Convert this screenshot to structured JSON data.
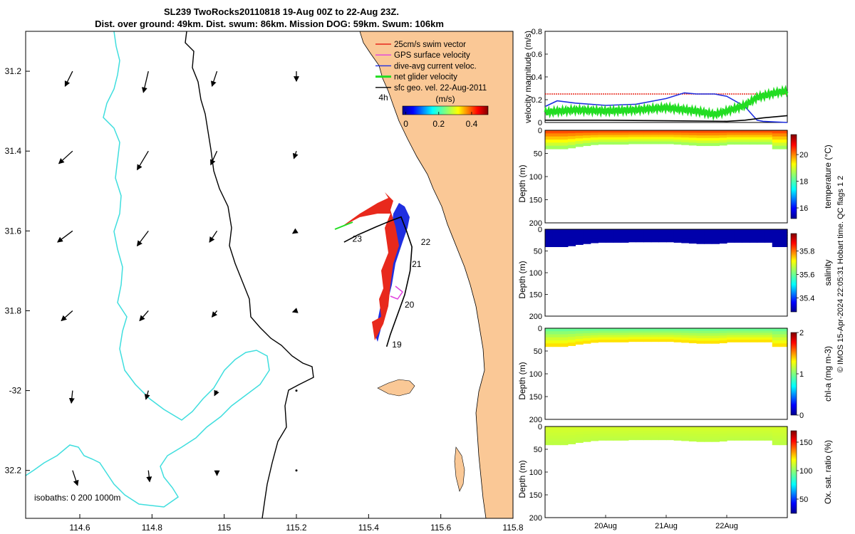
{
  "title": {
    "line1": "SL239 TwoRocks20110818 19-Aug 00Z to 22-Aug 23Z.",
    "line2": "Dist. over ground: 49km. Dist. swum: 86km. Mission DOG: 59km. Swum: 106km"
  },
  "credit": "© IMOS 15-Apr-2024 22:05:31 Hobart time. QC flags 1  2",
  "chart_data": [
    {
      "type": "map",
      "xlim": [
        114.45,
        115.8
      ],
      "ylim": [
        31.1,
        32.32
      ],
      "y_reversed": true,
      "xticks": [
        114.6,
        114.8,
        115,
        115.2,
        115.4,
        115.6,
        115.8
      ],
      "xtick_labels": [
        "114.6",
        "114.8",
        "115",
        "115.2",
        "115.4",
        "115.6",
        "115.8"
      ],
      "yticks": [
        31.2,
        31.4,
        31.6,
        31.8,
        32.0,
        32.2
      ],
      "ytick_labels": [
        "31.2",
        "31.4",
        "31.6",
        "31.8",
        "-32",
        "32.2"
      ],
      "legend": {
        "position": "top-right",
        "entries": [
          {
            "label": "25cm/s swim vector",
            "color": "#e8291c"
          },
          {
            "label": "GPS surface velocity",
            "color": "#e040e0"
          },
          {
            "label": "dive-avg current veloc.",
            "color": "#1f2fe0"
          },
          {
            "label": "net glider velocity",
            "color": "#22dd22"
          },
          {
            "label": "sfc geo. vel. 22-Aug-2011",
            "color": "#000000"
          }
        ]
      },
      "colorbar": {
        "label": "(m/s)",
        "ticks": [
          0,
          0.2,
          0.4
        ],
        "tick_labels": [
          "0",
          "0.2",
          "0.4"
        ],
        "range": [
          -0.02,
          0.5
        ]
      },
      "annotation_4h": "4h",
      "isobath_label": "isobaths: 0   200  1000m",
      "track": [
        {
          "lon": 115.332,
          "lat": 31.628
        },
        {
          "lon": 115.37,
          "lat": 31.61
        },
        {
          "lon": 115.42,
          "lat": 31.59
        },
        {
          "lon": 115.46,
          "lat": 31.575
        },
        {
          "lon": 115.49,
          "lat": 31.565
        },
        {
          "lon": 115.505,
          "lat": 31.6
        },
        {
          "lon": 115.52,
          "lat": 31.64
        },
        {
          "lon": 115.515,
          "lat": 31.7
        },
        {
          "lon": 115.5,
          "lat": 31.76
        },
        {
          "lon": 115.48,
          "lat": 31.81
        },
        {
          "lon": 115.46,
          "lat": 31.86
        },
        {
          "lon": 115.45,
          "lat": 31.89
        }
      ],
      "day_labels": [
        {
          "text": "19",
          "lon": 115.465,
          "lat": 31.885
        },
        {
          "text": "20",
          "lon": 115.5,
          "lat": 31.785
        },
        {
          "text": "21",
          "lon": 115.52,
          "lat": 31.683
        },
        {
          "text": "22",
          "lon": 115.545,
          "lat": 31.628
        },
        {
          "text": "23",
          "lon": 115.355,
          "lat": 31.62
        }
      ],
      "geo_vectors": [
        {
          "lon": 114.58,
          "lat": 31.2,
          "u": -0.03,
          "v": 0.06
        },
        {
          "lon": 114.79,
          "lat": 31.2,
          "u": -0.02,
          "v": 0.085
        },
        {
          "lon": 114.98,
          "lat": 31.2,
          "u": -0.02,
          "v": 0.06
        },
        {
          "lon": 115.2,
          "lat": 31.2,
          "u": 0.0,
          "v": 0.04
        },
        {
          "lon": 114.58,
          "lat": 31.4,
          "u": -0.055,
          "v": 0.05
        },
        {
          "lon": 114.79,
          "lat": 31.4,
          "u": -0.045,
          "v": 0.075
        },
        {
          "lon": 114.98,
          "lat": 31.4,
          "u": -0.025,
          "v": 0.055
        },
        {
          "lon": 115.2,
          "lat": 31.4,
          "u": -0.01,
          "v": 0.03
        },
        {
          "lon": 114.58,
          "lat": 31.6,
          "u": -0.06,
          "v": 0.045
        },
        {
          "lon": 114.79,
          "lat": 31.6,
          "u": -0.045,
          "v": 0.06
        },
        {
          "lon": 114.98,
          "lat": 31.6,
          "u": -0.03,
          "v": 0.045
        },
        {
          "lon": 115.2,
          "lat": 31.6,
          "u": -0.015,
          "v": 0.01
        },
        {
          "lon": 114.58,
          "lat": 31.8,
          "u": -0.045,
          "v": 0.04
        },
        {
          "lon": 114.79,
          "lat": 31.8,
          "u": -0.035,
          "v": 0.04
        },
        {
          "lon": 114.98,
          "lat": 31.8,
          "u": -0.02,
          "v": 0.025
        },
        {
          "lon": 115.2,
          "lat": 31.8,
          "u": -0.015,
          "v": 0.005
        },
        {
          "lon": 114.58,
          "lat": 32.0,
          "u": -0.005,
          "v": 0.05
        },
        {
          "lon": 114.79,
          "lat": 32.0,
          "u": -0.01,
          "v": 0.035
        },
        {
          "lon": 114.98,
          "lat": 32.0,
          "u": -0.01,
          "v": 0.02
        },
        {
          "lon": 115.2,
          "lat": 32.0,
          "u": 0.0,
          "v": 0.005
        },
        {
          "lon": 114.58,
          "lat": 32.2,
          "u": 0.02,
          "v": 0.06
        },
        {
          "lon": 114.79,
          "lat": 32.2,
          "u": 0.005,
          "v": 0.045
        },
        {
          "lon": 114.98,
          "lat": 32.2,
          "u": 0.0,
          "v": 0.02
        },
        {
          "lon": 115.2,
          "lat": 32.2,
          "u": 0.0,
          "v": 0.0
        }
      ]
    },
    {
      "type": "line",
      "ylabel": "velocity magnitude (m/s)",
      "ylim": [
        0,
        0.8
      ],
      "yticks": [
        0,
        0.2,
        0.4,
        0.6,
        0.8
      ],
      "xlim": [
        0,
        4
      ],
      "xticks": [
        1,
        2,
        3
      ],
      "xtick_labels": [
        "20Aug",
        "21Aug",
        "22Aug"
      ],
      "series": [
        {
          "color": "#e8291c",
          "x": [
            0,
            4
          ],
          "y": [
            0.25,
            0.25
          ]
        },
        {
          "color": "#1f2fe0",
          "x": [
            0,
            0.2,
            0.5,
            1.0,
            1.5,
            1.8,
            2.0,
            2.3,
            2.5,
            2.8,
            3.0,
            3.3,
            3.5,
            3.6,
            4.0
          ],
          "y": [
            0.14,
            0.19,
            0.17,
            0.15,
            0.16,
            0.19,
            0.21,
            0.26,
            0.25,
            0.25,
            0.23,
            0.14,
            0.02,
            0.01,
            0.0
          ]
        },
        {
          "color": "#22dd22",
          "x": [
            0,
            0.5,
            1.0,
            1.5,
            2.0,
            2.5,
            2.8,
            3.0,
            3.3,
            3.5,
            3.8,
            4.0
          ],
          "y": [
            0.09,
            0.11,
            0.1,
            0.11,
            0.13,
            0.1,
            0.07,
            0.1,
            0.15,
            0.22,
            0.26,
            0.28
          ]
        },
        {
          "color": "#000000",
          "x": [
            0,
            1,
            2,
            3,
            3.3,
            3.6,
            4.0
          ],
          "y": [
            0.02,
            0.02,
            0.015,
            0.01,
            0.02,
            0.04,
            0.06
          ]
        }
      ]
    },
    {
      "type": "heatmap",
      "ylabel": "Depth (m)",
      "ylim": [
        200,
        0
      ],
      "yticks": [
        0,
        50,
        100,
        150,
        200
      ],
      "colorbar_label": "temperature (°C)",
      "colorbar_ticks": [
        16,
        18,
        20
      ],
      "colorbar_range": [
        15.2,
        21.5
      ],
      "surface_value": 20.3,
      "deep_value": 18.6,
      "max_depth": [
        40,
        40,
        40,
        38,
        35,
        33,
        31,
        30,
        30,
        30,
        30,
        29,
        29,
        29,
        29,
        29,
        29,
        30,
        31,
        32,
        33,
        33,
        33,
        32,
        30,
        30,
        30,
        30,
        30,
        30,
        40,
        40
      ]
    },
    {
      "type": "heatmap",
      "ylabel": "Depth (m)",
      "ylim": [
        200,
        0
      ],
      "yticks": [
        0,
        50,
        100,
        150,
        200
      ],
      "colorbar_label": "salinity",
      "colorbar_ticks": [
        35.4,
        35.6,
        35.8
      ],
      "colorbar_range": [
        35.28,
        35.95
      ],
      "surface_value": 35.3,
      "deep_value": 35.3,
      "max_depth": [
        40,
        40,
        40,
        38,
        35,
        33,
        31,
        30,
        30,
        30,
        30,
        29,
        29,
        29,
        29,
        29,
        29,
        30,
        31,
        32,
        33,
        33,
        33,
        32,
        30,
        30,
        30,
        30,
        30,
        30,
        40,
        40
      ]
    },
    {
      "type": "heatmap",
      "ylabel": "Depth (m)",
      "ylim": [
        200,
        0
      ],
      "yticks": [
        0,
        50,
        100,
        150,
        200
      ],
      "colorbar_label": "chl-a (mg m-3)",
      "colorbar_ticks": [
        0,
        1,
        2
      ],
      "colorbar_range": [
        0,
        2
      ],
      "surface_value": 0.95,
      "deep_value": 1.35,
      "max_depth": [
        40,
        40,
        40,
        38,
        35,
        33,
        31,
        30,
        30,
        30,
        30,
        29,
        29,
        29,
        29,
        29,
        29,
        30,
        31,
        32,
        33,
        33,
        33,
        32,
        30,
        30,
        30,
        30,
        30,
        30,
        40,
        40
      ]
    },
    {
      "type": "heatmap",
      "ylabel": "Depth (m)",
      "ylim": [
        200,
        0
      ],
      "yticks": [
        0,
        50,
        100,
        150,
        200
      ],
      "colorbar_label": "Ox. sat. ratio (%)",
      "colorbar_ticks": [
        50,
        100,
        150
      ],
      "colorbar_range": [
        25,
        170
      ],
      "surface_value": 112,
      "deep_value": 108,
      "max_depth": [
        40,
        40,
        40,
        38,
        35,
        33,
        31,
        30,
        30,
        30,
        30,
        29,
        29,
        29,
        29,
        29,
        29,
        30,
        31,
        32,
        33,
        33,
        33,
        32,
        30,
        30,
        30,
        30,
        30,
        30,
        40,
        40
      ]
    }
  ]
}
